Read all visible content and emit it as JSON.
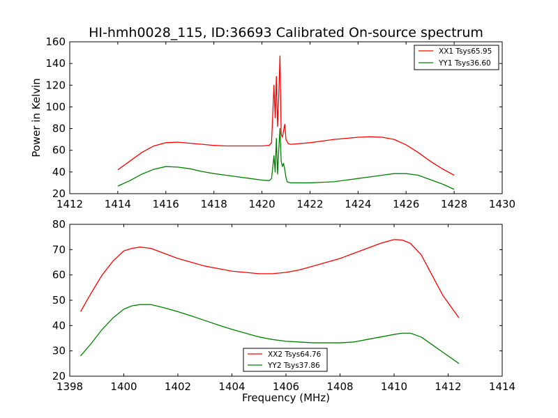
{
  "chart_data": [
    {
      "type": "line",
      "title": "HI-hmh0028_115, ID:36693 Calibrated On-source spectrum",
      "xlabel": "",
      "ylabel": "Power in Kelvin",
      "xlim": [
        1412,
        1430
      ],
      "ylim": [
        20,
        160
      ],
      "xticks": [
        "1412",
        "1414",
        "1416",
        "1418",
        "1420",
        "1422",
        "1424",
        "1426",
        "1428",
        "1430"
      ],
      "yticks": [
        "20",
        "40",
        "60",
        "80",
        "100",
        "120",
        "140",
        "160"
      ],
      "grid": false,
      "legend_position": "top-right",
      "series": [
        {
          "name": "XX1 Tsys65.95",
          "color": "#ff0000",
          "x": [
            1414.0,
            1414.5,
            1415.0,
            1415.5,
            1416.0,
            1416.5,
            1417.0,
            1417.5,
            1418.0,
            1418.5,
            1419.0,
            1419.5,
            1420.0,
            1420.3,
            1420.4,
            1420.5,
            1420.55,
            1420.6,
            1420.65,
            1420.7,
            1420.75,
            1420.8,
            1420.85,
            1420.9,
            1420.95,
            1421.0,
            1421.05,
            1421.1,
            1421.2,
            1421.5,
            1422.0,
            1422.5,
            1423.0,
            1423.5,
            1424.0,
            1424.5,
            1425.0,
            1425.5,
            1426.0,
            1426.5,
            1427.0,
            1427.5,
            1428.0
          ],
          "y": [
            42,
            50,
            58,
            64,
            67,
            67.5,
            66.5,
            65.5,
            64.5,
            64,
            64,
            64,
            64,
            64.5,
            67,
            120,
            90,
            128,
            82,
            110,
            147,
            75,
            72,
            78,
            84,
            70,
            68,
            66,
            65.5,
            66,
            67,
            68.5,
            70,
            71,
            72,
            72.5,
            72,
            70,
            65,
            58,
            50,
            43,
            37
          ]
        },
        {
          "name": "YY1 Tsys36.60",
          "color": "#008000",
          "x": [
            1414.0,
            1414.5,
            1415.0,
            1415.5,
            1416.0,
            1416.5,
            1417.0,
            1417.5,
            1418.0,
            1418.5,
            1419.0,
            1419.5,
            1420.0,
            1420.3,
            1420.4,
            1420.5,
            1420.55,
            1420.6,
            1420.65,
            1420.7,
            1420.75,
            1420.8,
            1420.85,
            1420.9,
            1420.95,
            1421.0,
            1421.05,
            1421.1,
            1421.2,
            1421.5,
            1422.0,
            1422.5,
            1423.0,
            1423.5,
            1424.0,
            1424.5,
            1425.0,
            1425.5,
            1426.0,
            1426.5,
            1427.0,
            1427.5,
            1428.0
          ],
          "y": [
            27,
            32,
            38,
            42.5,
            45,
            44.5,
            43,
            40.5,
            38.5,
            37,
            35.5,
            34,
            32.5,
            32,
            34,
            55,
            40,
            71,
            38,
            60,
            80,
            50,
            45,
            48,
            42,
            35,
            31,
            30.5,
            30,
            30,
            30,
            30.5,
            31,
            32.5,
            34,
            35.5,
            37,
            38.5,
            38.5,
            37,
            33,
            29,
            24
          ]
        }
      ]
    },
    {
      "type": "line",
      "title": "",
      "xlabel": "Frequency (MHz)",
      "ylabel": "",
      "xlim": [
        1398,
        1414
      ],
      "ylim": [
        20,
        80
      ],
      "xticks": [
        "1398",
        "1400",
        "1402",
        "1404",
        "1406",
        "1408",
        "1410",
        "1412",
        "1414"
      ],
      "yticks": [
        "20",
        "30",
        "40",
        "50",
        "60",
        "70",
        "80"
      ],
      "grid": false,
      "legend_position": "bottom-center",
      "series": [
        {
          "name": "XX2 Tsys64.76",
          "color": "#ff0000",
          "x": [
            1398.4,
            1398.8,
            1399.2,
            1399.6,
            1400.0,
            1400.3,
            1400.6,
            1401.0,
            1401.5,
            1402.0,
            1402.5,
            1403.0,
            1403.5,
            1404.0,
            1404.5,
            1405.0,
            1405.5,
            1406.0,
            1406.5,
            1407.0,
            1407.5,
            1408.0,
            1408.5,
            1409.0,
            1409.5,
            1410.0,
            1410.3,
            1410.6,
            1411.0,
            1411.4,
            1411.8,
            1412.4
          ],
          "y": [
            45.5,
            53,
            60,
            65.5,
            69.5,
            70.5,
            71,
            70.5,
            68.5,
            66.5,
            65,
            63.5,
            62.5,
            61.5,
            61,
            60.5,
            60.5,
            61,
            62,
            63.5,
            65,
            66.5,
            68.5,
            70.5,
            72.5,
            74,
            73.8,
            72.5,
            68,
            60,
            52,
            43
          ]
        },
        {
          "name": "YY2 Tsys37.86",
          "color": "#008000",
          "x": [
            1398.4,
            1398.8,
            1399.2,
            1399.6,
            1400.0,
            1400.3,
            1400.6,
            1401.0,
            1401.5,
            1402.0,
            1402.5,
            1403.0,
            1403.5,
            1404.0,
            1404.5,
            1405.0,
            1405.5,
            1406.0,
            1406.5,
            1407.0,
            1407.5,
            1408.0,
            1408.5,
            1409.0,
            1409.5,
            1410.0,
            1410.3,
            1410.6,
            1411.0,
            1411.4,
            1411.8,
            1412.4
          ],
          "y": [
            28,
            33,
            38.5,
            43,
            46.5,
            47.8,
            48.3,
            48.3,
            47,
            45.5,
            43.8,
            42,
            40.2,
            38.5,
            37,
            35.5,
            34.5,
            33.8,
            33.5,
            33.2,
            33.2,
            33.2,
            33.5,
            34.5,
            35.5,
            36.5,
            37,
            37,
            35.5,
            32.5,
            29.5,
            25
          ]
        }
      ]
    }
  ]
}
